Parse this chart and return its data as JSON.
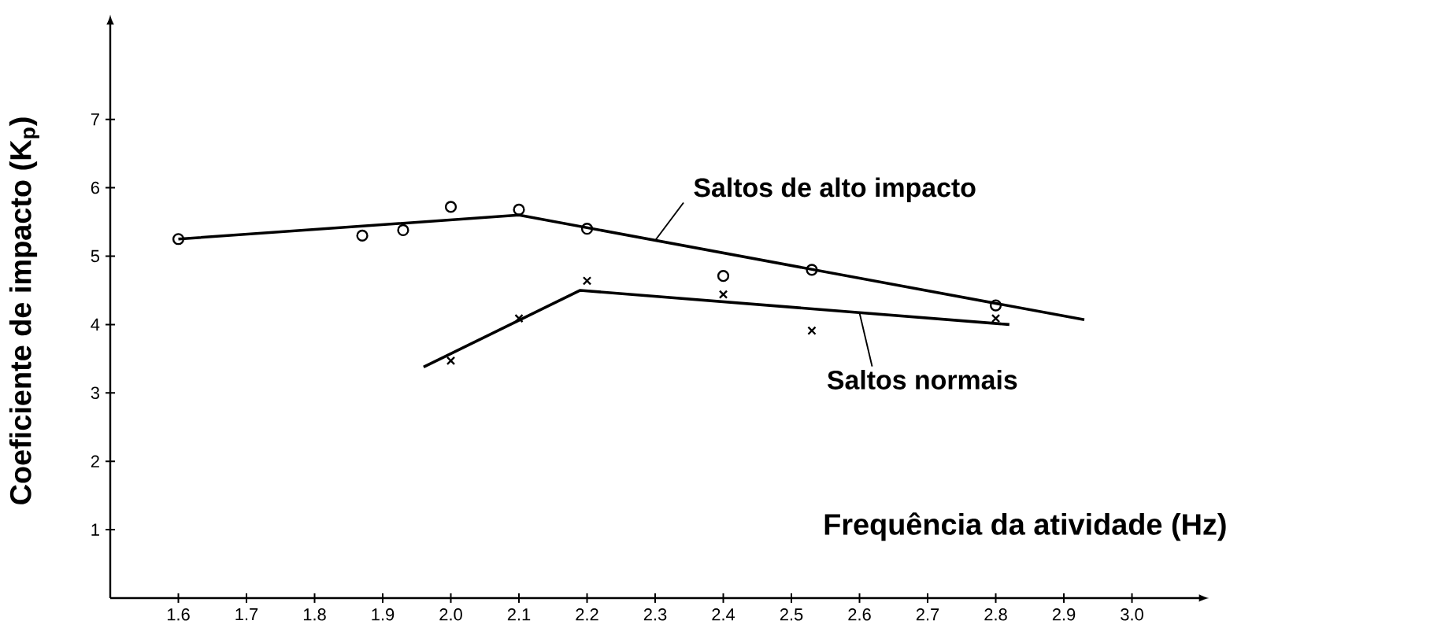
{
  "chart_data": {
    "type": "line",
    "xlabel": "Frequência da atividade (Hz)",
    "ylabel": "Coeficiente de impacto (K$_{p}$)",
    "xlim": [
      1.5,
      3.1
    ],
    "ylim": [
      0,
      8.4
    ],
    "xticks": [
      1.6,
      1.7,
      1.8,
      1.9,
      {
        "value": 2.0,
        "label": "2.0"
      },
      2.1,
      2.2,
      2.3,
      2.4,
      2.5,
      2.6,
      2.7,
      2.8,
      2.9,
      {
        "value": 3.0,
        "label": "3.0"
      }
    ],
    "yticks": [
      1,
      2,
      3,
      4,
      5,
      6,
      7
    ],
    "series": [
      {
        "type": "scatter",
        "marker": "circle",
        "color": "#000000",
        "x": [
          1.6,
          1.87,
          1.93,
          2.0,
          2.1,
          2.2,
          2.4,
          2.53,
          2.8
        ],
        "values": [
          5.25,
          5.3,
          5.38,
          5.72,
          5.68,
          5.4,
          4.71,
          4.8,
          4.28
        ]
      },
      {
        "marker": "none",
        "color": "#000000",
        "x": [
          1.6,
          2.1,
          2.93
        ],
        "values": [
          5.25,
          5.6,
          4.07
        ]
      },
      {
        "type": "scatter",
        "marker": "cross",
        "color": "#000000",
        "x": [
          2.0,
          2.1,
          2.2,
          2.4,
          2.53,
          2.8
        ],
        "values": [
          3.47,
          4.09,
          4.64,
          4.44,
          3.91,
          4.09
        ]
      },
      {
        "marker": "none",
        "color": "#000000",
        "x": [
          1.96,
          2.19,
          2.82
        ],
        "values": [
          3.38,
          4.5,
          4.0
        ]
      }
    ],
    "annotations": [
      {
        "text": "Saltos de alto impacto",
        "x": 2.3,
        "y": 5.23
      },
      {
        "text": "Saltos normais",
        "x": 2.6,
        "y": 4.17
      }
    ]
  }
}
